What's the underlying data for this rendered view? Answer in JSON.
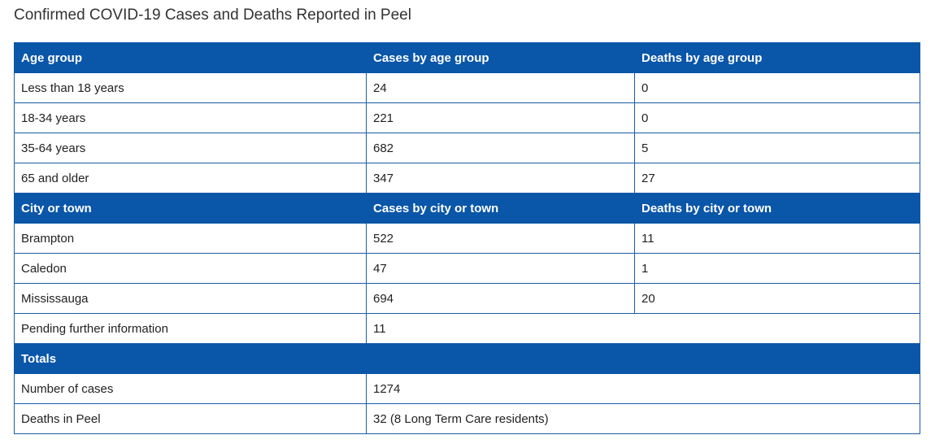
{
  "title": "Confirmed COVID-19 Cases and Deaths Reported in Peel",
  "age_section": {
    "headers": [
      "Age group",
      "Cases by age group",
      "Deaths by age group"
    ],
    "rows": [
      [
        "Less than 18 years",
        "24",
        "0"
      ],
      [
        "18-34 years",
        "221",
        "0"
      ],
      [
        "35-64 years",
        "682",
        "5"
      ],
      [
        "65 and older",
        "347",
        "27"
      ]
    ]
  },
  "city_section": {
    "headers": [
      "City or town",
      "Cases by city or town",
      "Deaths by city or town"
    ],
    "rows": [
      [
        "Brampton",
        "522",
        "11"
      ],
      [
        "Caledon",
        "47",
        "1"
      ],
      [
        "Mississauga",
        "694",
        "20"
      ]
    ],
    "pending_row": [
      "Pending further information",
      "11"
    ]
  },
  "totals_section": {
    "header": "Totals",
    "rows": [
      [
        "Number of cases",
        "1274"
      ],
      [
        "Deaths in Peel",
        "32 (8 Long Term Care residents)"
      ]
    ]
  },
  "colors": {
    "header_background": "#0a56a8",
    "header_text": "#ffffff",
    "border": "#1a5ca8"
  }
}
